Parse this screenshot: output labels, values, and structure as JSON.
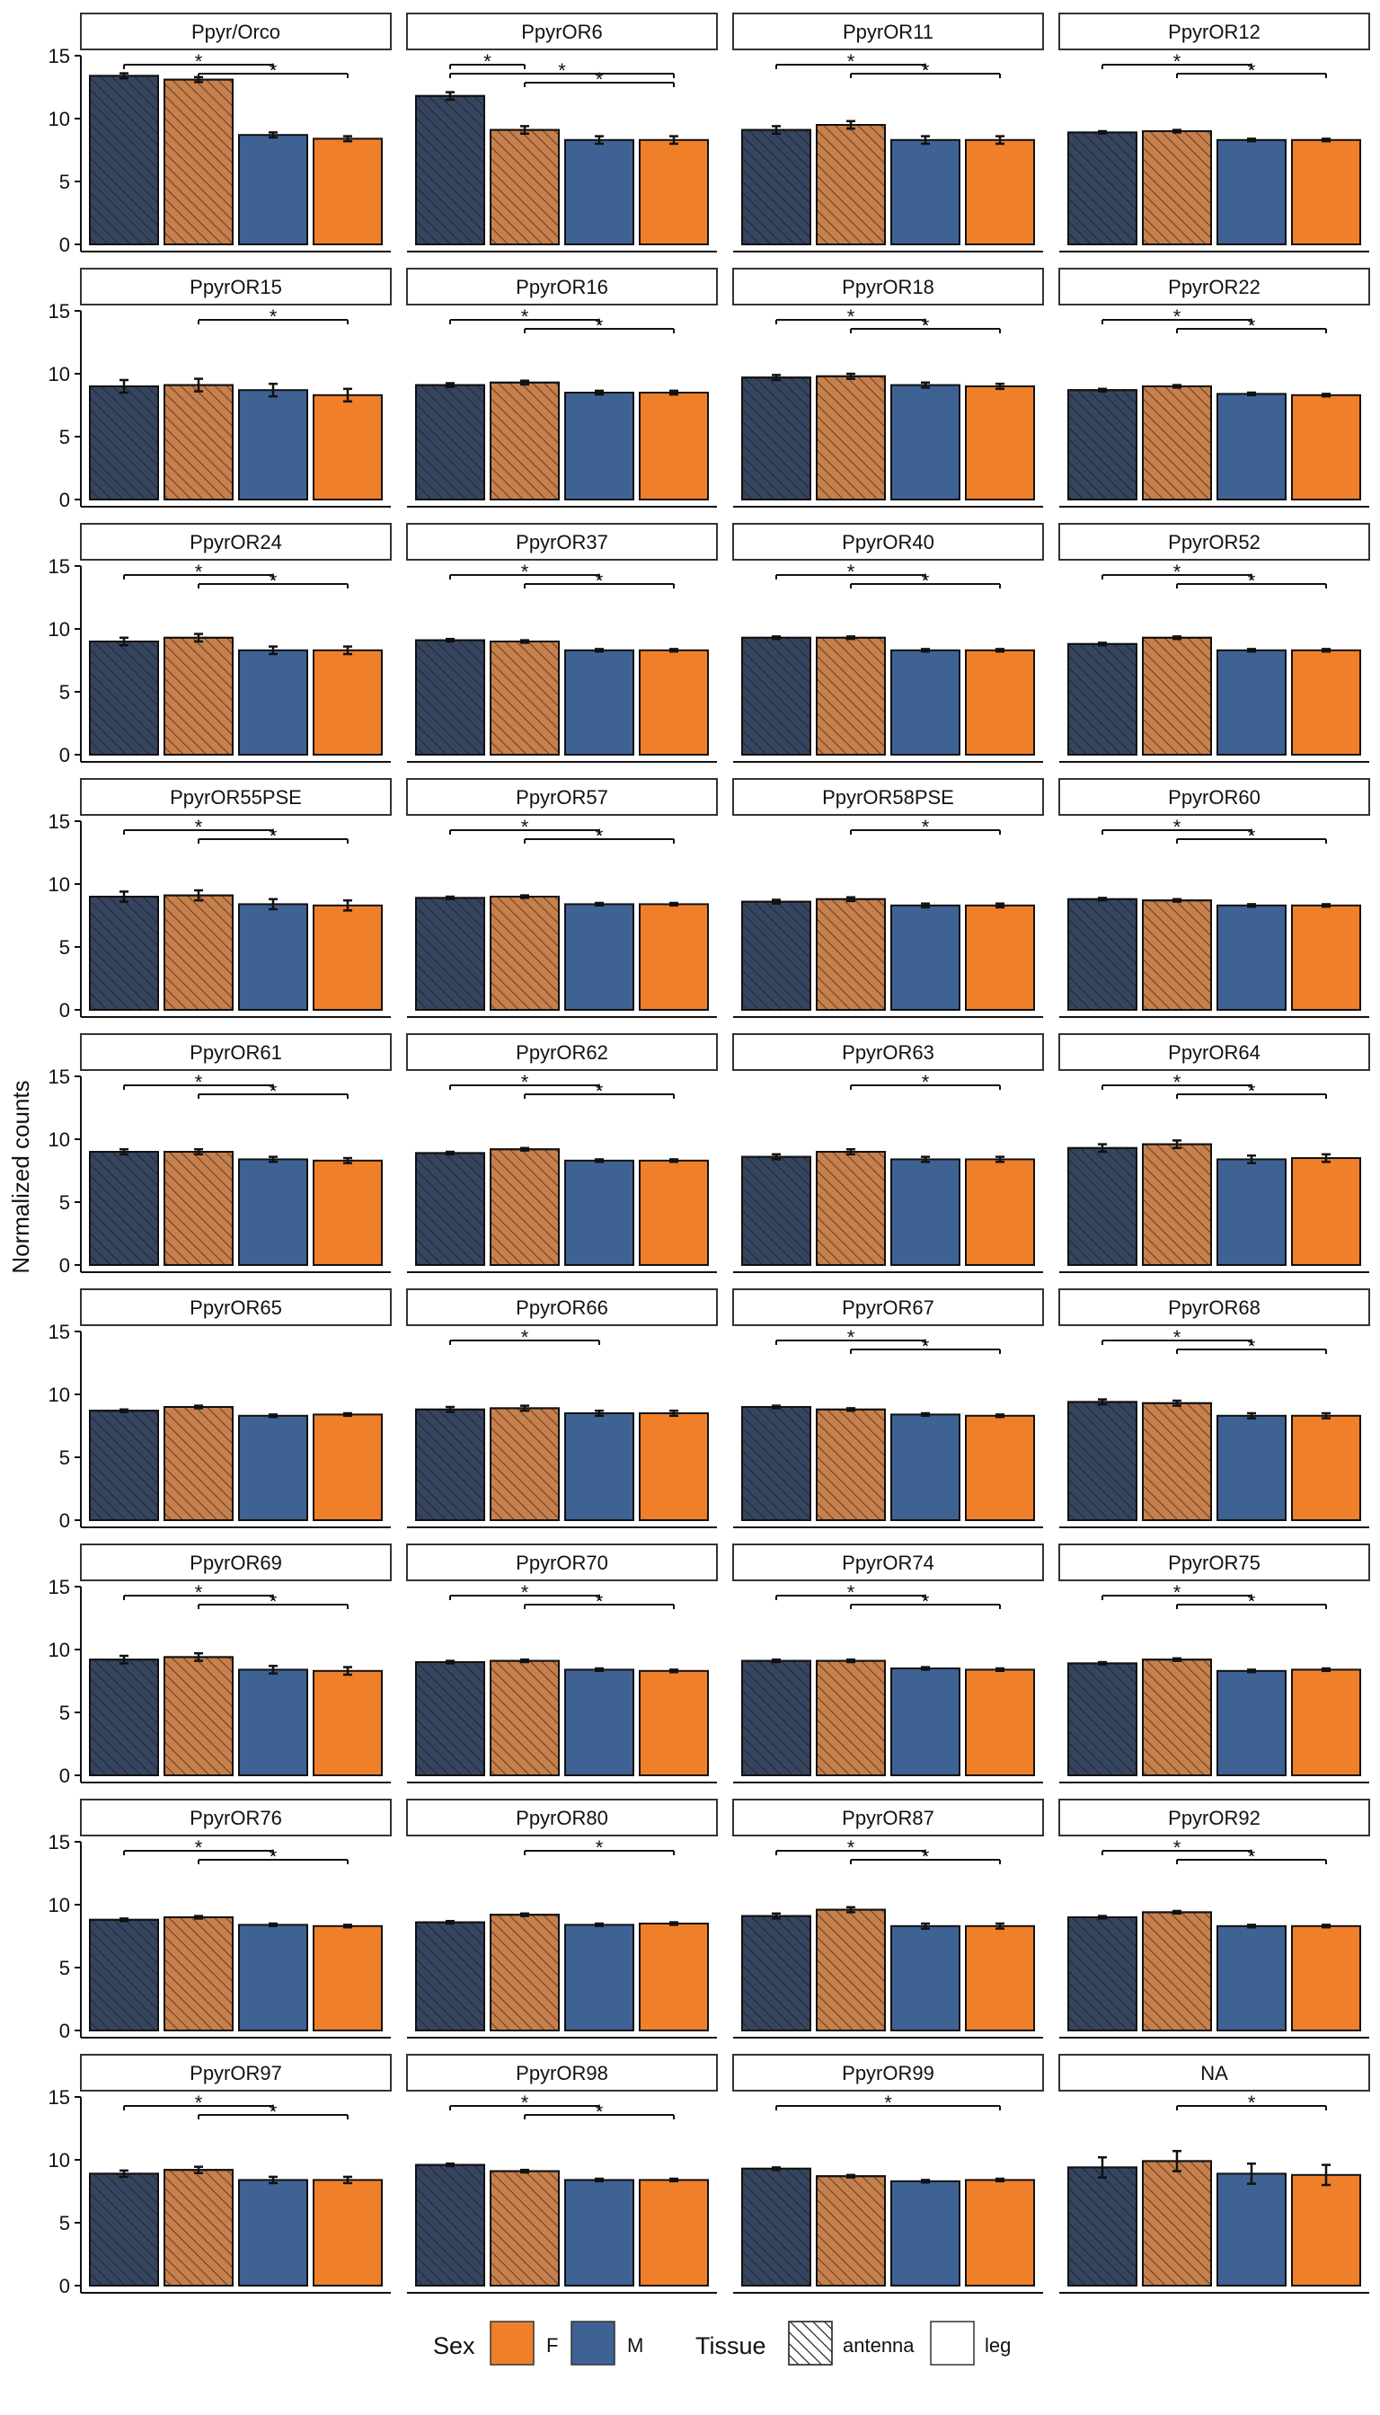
{
  "colors": {
    "F": "#f07f2a",
    "M": "#3e6294",
    "M_antenna": "#36455f",
    "F_antenna": "#c7804b",
    "stroke": "#111111"
  },
  "chart_data": {
    "type": "bar",
    "ylabel": "Normalized counts",
    "ylim": [
      0,
      15
    ],
    "yticks": [
      0,
      5,
      10,
      15
    ],
    "bar_order": [
      "M antenna",
      "F antenna",
      "M leg",
      "F leg"
    ],
    "legend": {
      "sex_title": "Sex",
      "sex_items": [
        {
          "label": "F",
          "color": "#f07f2a"
        },
        {
          "label": "M",
          "color": "#3e6294"
        }
      ],
      "tissue_title": "Tissue",
      "tissue_items": [
        {
          "label": "antenna",
          "pattern": "hatched"
        },
        {
          "label": "leg",
          "pattern": "plain"
        }
      ]
    },
    "panels": [
      {
        "name": "Ppyr/Orco",
        "values": [
          13.4,
          13.1,
          8.7,
          8.4
        ],
        "errors": [
          0.2,
          0.2,
          0.2,
          0.2
        ],
        "brackets": [
          [
            0,
            2
          ],
          [
            1,
            3
          ]
        ]
      },
      {
        "name": "PpyrOR6",
        "values": [
          11.8,
          9.1,
          8.3,
          8.3
        ],
        "errors": [
          0.3,
          0.3,
          0.3,
          0.3
        ],
        "brackets": [
          [
            0,
            1
          ],
          [
            0,
            3
          ],
          [
            1,
            3
          ]
        ]
      },
      {
        "name": "PpyrOR11",
        "values": [
          9.1,
          9.5,
          8.3,
          8.3
        ],
        "errors": [
          0.3,
          0.3,
          0.3,
          0.3
        ],
        "brackets": [
          [
            0,
            2
          ],
          [
            1,
            3
          ]
        ]
      },
      {
        "name": "PpyrOR12",
        "values": [
          8.9,
          9.0,
          8.3,
          8.3
        ],
        "errors": [
          0.1,
          0.1,
          0.1,
          0.1
        ],
        "brackets": [
          [
            0,
            2
          ],
          [
            1,
            3
          ]
        ]
      },
      {
        "name": "PpyrOR15",
        "values": [
          9.0,
          9.1,
          8.7,
          8.3
        ],
        "errors": [
          0.5,
          0.5,
          0.5,
          0.5
        ],
        "brackets": [
          [
            1,
            3
          ]
        ]
      },
      {
        "name": "PpyrOR16",
        "values": [
          9.1,
          9.3,
          8.5,
          8.5
        ],
        "errors": [
          0.15,
          0.15,
          0.15,
          0.15
        ],
        "brackets": [
          [
            0,
            2
          ],
          [
            1,
            3
          ]
        ]
      },
      {
        "name": "PpyrOR18",
        "values": [
          9.7,
          9.8,
          9.1,
          9.0
        ],
        "errors": [
          0.2,
          0.2,
          0.2,
          0.2
        ],
        "brackets": [
          [
            0,
            2
          ],
          [
            1,
            3
          ]
        ]
      },
      {
        "name": "PpyrOR22",
        "values": [
          8.7,
          9.0,
          8.4,
          8.3
        ],
        "errors": [
          0.1,
          0.1,
          0.1,
          0.1
        ],
        "brackets": [
          [
            0,
            2
          ],
          [
            1,
            3
          ]
        ]
      },
      {
        "name": "PpyrOR24",
        "values": [
          9.0,
          9.3,
          8.3,
          8.3
        ],
        "errors": [
          0.3,
          0.3,
          0.3,
          0.3
        ],
        "brackets": [
          [
            0,
            2
          ],
          [
            1,
            3
          ]
        ]
      },
      {
        "name": "PpyrOR37",
        "values": [
          9.1,
          9.0,
          8.3,
          8.3
        ],
        "errors": [
          0.1,
          0.1,
          0.1,
          0.1
        ],
        "brackets": [
          [
            0,
            2
          ],
          [
            1,
            3
          ]
        ]
      },
      {
        "name": "PpyrOR40",
        "values": [
          9.3,
          9.3,
          8.3,
          8.3
        ],
        "errors": [
          0.1,
          0.1,
          0.1,
          0.1
        ],
        "brackets": [
          [
            0,
            2
          ],
          [
            1,
            3
          ]
        ]
      },
      {
        "name": "PpyrOR52",
        "values": [
          8.8,
          9.3,
          8.3,
          8.3
        ],
        "errors": [
          0.1,
          0.1,
          0.1,
          0.1
        ],
        "brackets": [
          [
            0,
            2
          ],
          [
            1,
            3
          ]
        ]
      },
      {
        "name": "PpyrOR55PSE",
        "values": [
          9.0,
          9.1,
          8.4,
          8.3
        ],
        "errors": [
          0.4,
          0.4,
          0.4,
          0.4
        ],
        "brackets": [
          [
            0,
            2
          ],
          [
            1,
            3
          ]
        ]
      },
      {
        "name": "PpyrOR57",
        "values": [
          8.9,
          9.0,
          8.4,
          8.4
        ],
        "errors": [
          0.1,
          0.1,
          0.1,
          0.1
        ],
        "brackets": [
          [
            0,
            2
          ],
          [
            1,
            3
          ]
        ]
      },
      {
        "name": "PpyrOR58PSE",
        "values": [
          8.6,
          8.8,
          8.3,
          8.3
        ],
        "errors": [
          0.15,
          0.15,
          0.15,
          0.15
        ],
        "brackets": [
          [
            1,
            3
          ]
        ]
      },
      {
        "name": "PpyrOR60",
        "values": [
          8.8,
          8.7,
          8.3,
          8.3
        ],
        "errors": [
          0.1,
          0.1,
          0.1,
          0.1
        ],
        "brackets": [
          [
            0,
            2
          ],
          [
            1,
            3
          ]
        ]
      },
      {
        "name": "PpyrOR61",
        "values": [
          9.0,
          9.0,
          8.4,
          8.3
        ],
        "errors": [
          0.2,
          0.2,
          0.2,
          0.2
        ],
        "brackets": [
          [
            0,
            2
          ],
          [
            1,
            3
          ]
        ]
      },
      {
        "name": "PpyrOR62",
        "values": [
          8.9,
          9.2,
          8.3,
          8.3
        ],
        "errors": [
          0.1,
          0.1,
          0.1,
          0.1
        ],
        "brackets": [
          [
            0,
            2
          ],
          [
            1,
            3
          ]
        ]
      },
      {
        "name": "PpyrOR63",
        "values": [
          8.6,
          9.0,
          8.4,
          8.4
        ],
        "errors": [
          0.2,
          0.2,
          0.2,
          0.2
        ],
        "brackets": [
          [
            1,
            3
          ]
        ]
      },
      {
        "name": "PpyrOR64",
        "values": [
          9.3,
          9.6,
          8.4,
          8.5
        ],
        "errors": [
          0.3,
          0.3,
          0.3,
          0.3
        ],
        "brackets": [
          [
            0,
            2
          ],
          [
            1,
            3
          ]
        ]
      },
      {
        "name": "PpyrOR65",
        "values": [
          8.7,
          9.0,
          8.3,
          8.4
        ],
        "errors": [
          0.1,
          0.1,
          0.1,
          0.1
        ],
        "brackets": []
      },
      {
        "name": "PpyrOR66",
        "values": [
          8.8,
          8.9,
          8.5,
          8.5
        ],
        "errors": [
          0.2,
          0.2,
          0.2,
          0.2
        ],
        "brackets": [
          [
            0,
            2
          ]
        ]
      },
      {
        "name": "PpyrOR67",
        "values": [
          9.0,
          8.8,
          8.4,
          8.3
        ],
        "errors": [
          0.1,
          0.1,
          0.1,
          0.1
        ],
        "brackets": [
          [
            0,
            2
          ],
          [
            1,
            3
          ]
        ]
      },
      {
        "name": "PpyrOR68",
        "values": [
          9.4,
          9.3,
          8.3,
          8.3
        ],
        "errors": [
          0.2,
          0.2,
          0.2,
          0.2
        ],
        "brackets": [
          [
            0,
            2
          ],
          [
            1,
            3
          ]
        ]
      },
      {
        "name": "PpyrOR69",
        "values": [
          9.2,
          9.4,
          8.4,
          8.3
        ],
        "errors": [
          0.3,
          0.3,
          0.3,
          0.3
        ],
        "brackets": [
          [
            0,
            2
          ],
          [
            1,
            3
          ]
        ]
      },
      {
        "name": "PpyrOR70",
        "values": [
          9.0,
          9.1,
          8.4,
          8.3
        ],
        "errors": [
          0.1,
          0.1,
          0.1,
          0.1
        ],
        "brackets": [
          [
            0,
            2
          ],
          [
            1,
            3
          ]
        ]
      },
      {
        "name": "PpyrOR74",
        "values": [
          9.1,
          9.1,
          8.5,
          8.4
        ],
        "errors": [
          0.1,
          0.1,
          0.1,
          0.1
        ],
        "brackets": [
          [
            0,
            2
          ],
          [
            1,
            3
          ]
        ]
      },
      {
        "name": "PpyrOR75",
        "values": [
          8.9,
          9.2,
          8.3,
          8.4
        ],
        "errors": [
          0.1,
          0.1,
          0.1,
          0.1
        ],
        "brackets": [
          [
            0,
            2
          ],
          [
            1,
            3
          ]
        ]
      },
      {
        "name": "PpyrOR76",
        "values": [
          8.8,
          9.0,
          8.4,
          8.3
        ],
        "errors": [
          0.1,
          0.1,
          0.1,
          0.1
        ],
        "brackets": [
          [
            0,
            2
          ],
          [
            1,
            3
          ]
        ]
      },
      {
        "name": "PpyrOR80",
        "values": [
          8.6,
          9.2,
          8.4,
          8.5
        ],
        "errors": [
          0.1,
          0.1,
          0.1,
          0.1
        ],
        "brackets": [
          [
            1,
            3
          ]
        ]
      },
      {
        "name": "PpyrOR87",
        "values": [
          9.1,
          9.6,
          8.3,
          8.3
        ],
        "errors": [
          0.2,
          0.2,
          0.2,
          0.2
        ],
        "brackets": [
          [
            0,
            2
          ],
          [
            1,
            3
          ]
        ]
      },
      {
        "name": "PpyrOR92",
        "values": [
          9.0,
          9.4,
          8.3,
          8.3
        ],
        "errors": [
          0.1,
          0.1,
          0.1,
          0.1
        ],
        "brackets": [
          [
            0,
            2
          ],
          [
            1,
            3
          ]
        ]
      },
      {
        "name": "PpyrOR97",
        "values": [
          8.9,
          9.2,
          8.4,
          8.4
        ],
        "errors": [
          0.25,
          0.25,
          0.25,
          0.25
        ],
        "brackets": [
          [
            0,
            2
          ],
          [
            1,
            3
          ]
        ]
      },
      {
        "name": "PpyrOR98",
        "values": [
          9.6,
          9.1,
          8.4,
          8.4
        ],
        "errors": [
          0.1,
          0.1,
          0.1,
          0.1
        ],
        "brackets": [
          [
            0,
            2
          ],
          [
            1,
            3
          ]
        ]
      },
      {
        "name": "PpyrOR99",
        "values": [
          9.3,
          8.7,
          8.3,
          8.4
        ],
        "errors": [
          0.1,
          0.1,
          0.1,
          0.1
        ],
        "brackets": [
          [
            0,
            3
          ]
        ]
      },
      {
        "name": "NA",
        "values": [
          9.4,
          9.9,
          8.9,
          8.8
        ],
        "errors": [
          0.8,
          0.8,
          0.8,
          0.8
        ],
        "brackets": [
          [
            1,
            3
          ]
        ]
      }
    ]
  }
}
